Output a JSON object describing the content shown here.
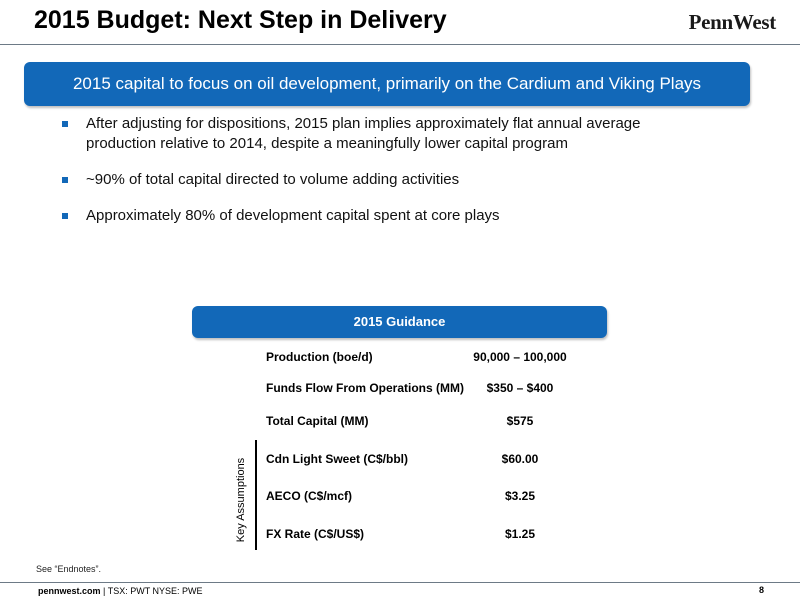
{
  "header": {
    "title": "2015 Budget: Next Step in Delivery",
    "logo_text": "PennWest"
  },
  "banner": {
    "text": "2015 capital to focus on oil development, primarily on the Cardium and Viking Plays"
  },
  "bullets": [
    {
      "text": "After adjusting for dispositions, 2015 plan implies approximately flat annual average production relative to 2014, despite a meaningfully lower capital program"
    },
    {
      "text": "~90% of total capital directed to volume adding activities"
    },
    {
      "text": "Approximately 80% of development capital spent at core plays"
    }
  ],
  "guidance": {
    "header": "2015 Guidance",
    "rows": [
      {
        "label": "Production (boe/d)",
        "value": "90,000 – 100,000"
      },
      {
        "label": "Funds Flow From Operations (MM)",
        "value": "$350 – $400"
      },
      {
        "label": "Total Capital (MM)",
        "value": "$575"
      },
      {
        "label": "Cdn Light Sweet (C$/bbl)",
        "value": "$60.00"
      },
      {
        "label": "AECO (C$/mcf)",
        "value": "$3.25"
      },
      {
        "label": "FX Rate (C$/US$)",
        "value": "$1.25"
      }
    ],
    "key_assumptions_label": "Key Assumptions"
  },
  "endnote": "See “Endnotes”.",
  "footer": {
    "site": "pennwest.com",
    "tickers": " | TSX: PWT  NYSE: PWE",
    "page_number": "8"
  },
  "colors": {
    "accent": "#1268b8",
    "rule": "#6d7a86"
  }
}
